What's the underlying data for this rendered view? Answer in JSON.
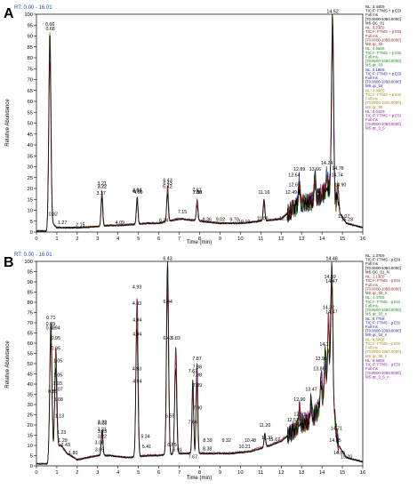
{
  "panels": [
    {
      "letter": "A",
      "rt_label": "RT: 0.00 - 16.01",
      "xlabel": "Time (min)",
      "ylabel": "Relative Abundance",
      "xticks": [
        "0",
        "1",
        "2",
        "3",
        "4",
        "5",
        "6",
        "7",
        "8",
        "9",
        "10",
        "11",
        "12",
        "13",
        "14",
        "15",
        "16"
      ],
      "yticks": [
        "0",
        "5",
        "10",
        "15",
        "20",
        "25",
        "30",
        "35",
        "40",
        "45",
        "50",
        "55",
        "60",
        "65",
        "70",
        "75",
        "80",
        "85",
        "90",
        "95",
        "100"
      ],
      "legend": [
        {
          "color": "#000000",
          "lines": [
            "NL: 3.44E9",
            "TIC F: FTMS + p ESI",
            "Full ms",
            "[70.0000-1050.0000]",
            "MS QC_01"
          ]
        },
        {
          "color": "#8b1a1a",
          "lines": [
            "NL: 3.23E9",
            "TIC F: FTMS + p ESI",
            "Full ms",
            "[70.0000-1050.0000]",
            "MS qc_02"
          ]
        },
        {
          "color": "#1a8a1a",
          "lines": [
            "NL: 3.55E9",
            "TIC F: FTMS + p ESI",
            "Full ms",
            "[70.0000-1050.0000]",
            "MS qc_03"
          ]
        },
        {
          "color": "#2020a0",
          "lines": [
            "NL: 3.18E9",
            "TIC F: FTMS + p ESI",
            "Full ms",
            "[70.0000-1050.0000]",
            "MS qc_04"
          ]
        },
        {
          "color": "#a08a10",
          "lines": [
            "NL: 3.39E9",
            "TIC F: FTMS + p ESI",
            "Full ms",
            "[70.0000-1050.0000]",
            "MS qc_05"
          ]
        },
        {
          "color": "#8a1a9a",
          "lines": [
            "NL: 3.01E9",
            "TIC F: FTMS + p ESI",
            "Full ms",
            "[70.0000-1050.0000]",
            "MS qc_0_6"
          ]
        }
      ],
      "peak_labels": [
        {
          "t": 0.66,
          "y": 94,
          "text": "0.66"
        },
        {
          "t": 0.68,
          "y": 92,
          "text": "0.68"
        },
        {
          "t": 0.82,
          "y": 7,
          "text": "0.82"
        },
        {
          "t": 1.27,
          "y": 3,
          "text": "1.27"
        },
        {
          "t": 2.15,
          "y": 2,
          "text": "2.15"
        },
        {
          "t": 3.21,
          "y": 21,
          "text": "3.21"
        },
        {
          "t": 3.22,
          "y": 19.5,
          "text": "3.22"
        },
        {
          "t": 3.22,
          "y": 19.5,
          "text": "3.22"
        },
        {
          "t": 3.17,
          "y": 16.5,
          "text": "3.17"
        },
        {
          "t": 4.09,
          "y": 3,
          "text": "4.09"
        },
        {
          "t": 4.93,
          "y": 17.5,
          "text": "4.93"
        },
        {
          "t": 4.94,
          "y": 18,
          "text": "4.94"
        },
        {
          "t": 4.99,
          "y": 17,
          "text": "4.99"
        },
        {
          "t": 6.24,
          "y": 4,
          "text": "6.24"
        },
        {
          "t": 6.42,
          "y": 19.5,
          "text": "6.42"
        },
        {
          "t": 6.43,
          "y": 22.5,
          "text": "6.43"
        },
        {
          "t": 6.43,
          "y": 21,
          "text": "6.43"
        },
        {
          "t": 7.15,
          "y": 8,
          "text": "7.15"
        },
        {
          "t": 7.88,
          "y": 17,
          "text": "7.88"
        },
        {
          "t": 7.87,
          "y": 18,
          "text": "7.87"
        },
        {
          "t": 7.9,
          "y": 17,
          "text": "7.90"
        },
        {
          "t": 8.36,
          "y": 4.5,
          "text": "8.36"
        },
        {
          "t": 9.02,
          "y": 4.5,
          "text": "9.02"
        },
        {
          "t": 9.7,
          "y": 4.5,
          "text": "9.70"
        },
        {
          "t": 10.19,
          "y": 3.5,
          "text": "10.19"
        },
        {
          "t": 11.08,
          "y": 5,
          "text": "11.08"
        },
        {
          "t": 11.16,
          "y": 17,
          "text": "11.16"
        },
        {
          "t": 12.19,
          "y": 5,
          "text": "12.19"
        },
        {
          "t": 12.49,
          "y": 17,
          "text": "12.49"
        },
        {
          "t": 12.89,
          "y": 27.5,
          "text": "12.89"
        },
        {
          "t": 12.64,
          "y": 25,
          "text": "12.64"
        },
        {
          "t": 12.65,
          "y": 20.5,
          "text": "12.65"
        },
        {
          "t": 13.66,
          "y": 27.5,
          "text": "13.66"
        },
        {
          "t": 14.24,
          "y": 30.5,
          "text": "14.24"
        },
        {
          "t": 14.52,
          "y": 100,
          "text": "14.52"
        },
        {
          "t": 14.78,
          "y": 28,
          "text": "14.78"
        },
        {
          "t": 14.74,
          "y": 25,
          "text": "14.74"
        },
        {
          "t": 14.9,
          "y": 20.5,
          "text": "14.90"
        },
        {
          "t": 15.07,
          "y": 6,
          "text": "15.07"
        },
        {
          "t": 15.23,
          "y": 4.5,
          "text": "15.23"
        }
      ]
    },
    {
      "letter": "B",
      "rt_label": "RT: 0.00 - 16.01",
      "xlabel": "Time (min)",
      "ylabel": "Relative Abundance",
      "xticks": [
        "0",
        "1",
        "2",
        "3",
        "4",
        "5",
        "6",
        "7",
        "8",
        "9",
        "10",
        "11",
        "12",
        "13",
        "14",
        "15",
        "16"
      ],
      "yticks": [
        "0",
        "5",
        "10",
        "15",
        "20",
        "25",
        "30",
        "35",
        "40",
        "45",
        "50",
        "55",
        "60",
        "65",
        "70",
        "75",
        "80",
        "85",
        "90",
        "95",
        "100"
      ],
      "legend": [
        {
          "color": "#000000",
          "lines": [
            "NL: 1.37E9",
            "TIC F: FTMS - p ESI",
            "Full ms",
            "[70.0000-1050.0000]",
            "MS QC_01_N"
          ]
        },
        {
          "color": "#8b1a1a",
          "lines": [
            "NL: 1.13E9",
            "TIC F: FTMS - p ESI",
            "Full ms",
            "[70.0000-1050.0000]",
            "MS qc_02_n"
          ]
        },
        {
          "color": "#1a8a1a",
          "lines": [
            "NL: 1.47E9",
            "TIC F: FTMS - p ESI",
            "Full ms",
            "[70.0000-1050.0000]",
            "MS qc_03_n"
          ]
        },
        {
          "color": "#2020a0",
          "lines": [
            "NL: 8.77E8",
            "TIC F: FTMS - p ESI",
            "Full ms",
            "[70.0000-1050.0000]",
            "MS qc_04_n"
          ]
        },
        {
          "color": "#a08a10",
          "lines": [
            "NL: 8.50E8",
            "TIC F: FTMS - p ESI",
            "Full ms",
            "[70.0000-1050.0000]",
            "MS qc_05_n"
          ]
        },
        {
          "color": "#8a1a9a",
          "lines": [
            "NL: 9.56E8",
            "TIC F: FTMS - p ESI",
            "Full ms",
            "[70.0000-1050.0000]",
            "MS qc_0_6_n"
          ]
        }
      ],
      "peak_labels": [
        {
          "t": 0.71,
          "y": 71,
          "text": "0.71"
        },
        {
          "t": 0.69,
          "y": 68,
          "text": "0.69"
        },
        {
          "t": 0.69,
          "y": 66,
          "text": "0.69"
        },
        {
          "t": 0.94,
          "y": 66,
          "text": "0.94"
        },
        {
          "t": 0.95,
          "y": 61,
          "text": "0.95"
        },
        {
          "t": 0.95,
          "y": 56,
          "text": "0.95"
        },
        {
          "t": 1.05,
          "y": 50,
          "text": "1.05"
        },
        {
          "t": 1.05,
          "y": 43,
          "text": "1.05"
        },
        {
          "t": 1.03,
          "y": 39,
          "text": "1.03"
        },
        {
          "t": 1.07,
          "y": 36,
          "text": "1.07"
        },
        {
          "t": 0.8,
          "y": 35,
          "text": "0.80"
        },
        {
          "t": 1.08,
          "y": 31,
          "text": "1.08"
        },
        {
          "t": 1.13,
          "y": 23,
          "text": "1.13"
        },
        {
          "t": 1.23,
          "y": 15,
          "text": "1.23"
        },
        {
          "t": 1.29,
          "y": 11,
          "text": "1.29"
        },
        {
          "t": 1.43,
          "y": 9,
          "text": "1.43"
        },
        {
          "t": 1.8,
          "y": 5,
          "text": "1.80"
        },
        {
          "t": 3.08,
          "y": 10,
          "text": "3.08"
        },
        {
          "t": 3.09,
          "y": 6.5,
          "text": "3.09"
        },
        {
          "t": 3.22,
          "y": 20,
          "text": "3.22"
        },
        {
          "t": 3.23,
          "y": 19.5,
          "text": "3.23"
        },
        {
          "t": 3.21,
          "y": 16.5,
          "text": "3.21"
        },
        {
          "t": 3.23,
          "y": 15.5,
          "text": "3.23"
        },
        {
          "t": 3.22,
          "y": 13,
          "text": "3.22"
        },
        {
          "t": 4.93,
          "y": 86,
          "text": "4.93"
        },
        {
          "t": 4.93,
          "y": 78,
          "text": "4.93"
        },
        {
          "t": 4.94,
          "y": 70,
          "text": "4.94"
        },
        {
          "t": 4.94,
          "y": 63,
          "text": "4.94"
        },
        {
          "t": 4.93,
          "y": 46,
          "text": "4.93"
        },
        {
          "t": 4.94,
          "y": 40,
          "text": "4.94"
        },
        {
          "t": 5.34,
          "y": 13,
          "text": "5.34"
        },
        {
          "t": 5.41,
          "y": 8,
          "text": "5.41"
        },
        {
          "t": 6.43,
          "y": 100,
          "text": "6.43"
        },
        {
          "t": 6.44,
          "y": 79,
          "text": "6.44"
        },
        {
          "t": 6.83,
          "y": 61,
          "text": "6.83"
        },
        {
          "t": 6.43,
          "y": 61,
          "text": "6.43"
        },
        {
          "t": 6.55,
          "y": 23,
          "text": "6.55"
        },
        {
          "t": 6.65,
          "y": 9,
          "text": "6.65"
        },
        {
          "t": 6.91,
          "y": 6.5,
          "text": "6.91"
        },
        {
          "t": 7.67,
          "y": 45,
          "text": "7.67"
        },
        {
          "t": 7.66,
          "y": 20,
          "text": "7.66"
        },
        {
          "t": 7.67,
          "y": 3,
          "text": "7.67"
        },
        {
          "t": 7.87,
          "y": 51,
          "text": "7.87"
        },
        {
          "t": 7.88,
          "y": 47,
          "text": "7.88"
        },
        {
          "t": 7.88,
          "y": 43,
          "text": "7.88"
        },
        {
          "t": 7.89,
          "y": 38,
          "text": "7.89"
        },
        {
          "t": 7.9,
          "y": 27,
          "text": "7.90"
        },
        {
          "t": 8.39,
          "y": 11,
          "text": "8.39"
        },
        {
          "t": 8.38,
          "y": 7,
          "text": "8.38"
        },
        {
          "t": 9.32,
          "y": 11,
          "text": "9.32"
        },
        {
          "t": 10.48,
          "y": 11,
          "text": "10.48"
        },
        {
          "t": 10.21,
          "y": 8,
          "text": "10.21"
        },
        {
          "t": 11.2,
          "y": 18.5,
          "text": "11.20"
        },
        {
          "t": 11.31,
          "y": 12.5,
          "text": "11.31"
        },
        {
          "t": 11.67,
          "y": 11.5,
          "text": "11.67"
        },
        {
          "t": 12.57,
          "y": 21,
          "text": "12.57"
        },
        {
          "t": 12.9,
          "y": 31,
          "text": "12.90"
        },
        {
          "t": 12.91,
          "y": 24,
          "text": "12.91"
        },
        {
          "t": 13.47,
          "y": 36,
          "text": "13.47"
        },
        {
          "t": 13.96,
          "y": 51,
          "text": "13.96"
        },
        {
          "t": 13.86,
          "y": 46,
          "text": "13.86"
        },
        {
          "t": 14.17,
          "y": 58,
          "text": "14.17"
        },
        {
          "t": 14.32,
          "y": 76,
          "text": "14.32"
        },
        {
          "t": 14.39,
          "y": 91,
          "text": "14.39"
        },
        {
          "t": 14.47,
          "y": 89,
          "text": "14.47"
        },
        {
          "t": 14.48,
          "y": 100,
          "text": "14.48"
        },
        {
          "t": 14.47,
          "y": 74,
          "text": "14.47"
        },
        {
          "t": 14.71,
          "y": 17,
          "text": "14.71"
        },
        {
          "t": 14.65,
          "y": 11,
          "text": "14.65"
        },
        {
          "t": 14.85,
          "y": 5,
          "text": "14.85"
        },
        {
          "t": 15.2,
          "y": 3,
          "text": "15.20"
        }
      ]
    }
  ],
  "chart_data": [
    {
      "type": "line",
      "panel": "A",
      "xlabel": "Time (min)",
      "ylabel": "Relative Abundance",
      "xlim": [
        0,
        16
      ],
      "ylim": [
        0,
        100
      ],
      "series_names": [
        "MS QC_01",
        "MS qc_02",
        "MS qc_03",
        "MS qc_04",
        "MS qc_05",
        "MS qc_0_6"
      ],
      "series_colors": [
        "#000000",
        "#8b1a1a",
        "#1a8a1a",
        "#2020a0",
        "#a08a10",
        "#8a1a9a"
      ],
      "peaks": [
        {
          "t": 0.66,
          "y": 92
        },
        {
          "t": 3.21,
          "y": 19
        },
        {
          "t": 4.94,
          "y": 16
        },
        {
          "t": 6.43,
          "y": 21
        },
        {
          "t": 7.15,
          "y": 6
        },
        {
          "t": 7.88,
          "y": 15
        },
        {
          "t": 11.16,
          "y": 15
        },
        {
          "t": 12.89,
          "y": 24
        },
        {
          "t": 13.66,
          "y": 25
        },
        {
          "t": 14.24,
          "y": 27
        },
        {
          "t": 14.52,
          "y": 100
        },
        {
          "t": 14.78,
          "y": 22
        }
      ],
      "baseline": [
        {
          "t": 0,
          "y": 0.5
        },
        {
          "t": 0.5,
          "y": 0.5
        },
        {
          "t": 0.62,
          "y": 5
        },
        {
          "t": 0.8,
          "y": 4
        },
        {
          "t": 1.0,
          "y": 2
        },
        {
          "t": 2.0,
          "y": 2
        },
        {
          "t": 3.0,
          "y": 2.5
        },
        {
          "t": 3.5,
          "y": 3
        },
        {
          "t": 4.0,
          "y": 3
        },
        {
          "t": 5.5,
          "y": 4
        },
        {
          "t": 6.0,
          "y": 4
        },
        {
          "t": 7.0,
          "y": 6
        },
        {
          "t": 8.0,
          "y": 5
        },
        {
          "t": 9.0,
          "y": 4
        },
        {
          "t": 10.0,
          "y": 4
        },
        {
          "t": 11.0,
          "y": 5
        },
        {
          "t": 12.0,
          "y": 6
        },
        {
          "t": 12.5,
          "y": 10
        },
        {
          "t": 13.0,
          "y": 13
        },
        {
          "t": 13.5,
          "y": 14
        },
        {
          "t": 14.0,
          "y": 17
        },
        {
          "t": 14.4,
          "y": 20
        },
        {
          "t": 14.9,
          "y": 8
        },
        {
          "t": 15.2,
          "y": 4
        },
        {
          "t": 16.0,
          "y": 2
        }
      ]
    },
    {
      "type": "line",
      "panel": "B",
      "xlabel": "Time (min)",
      "ylabel": "Relative Abundance",
      "xlim": [
        0,
        16
      ],
      "ylim": [
        0,
        100
      ],
      "series_names": [
        "MS QC_01_N",
        "MS qc_02_n",
        "MS qc_03_n",
        "MS qc_04_n",
        "MS qc_05_n",
        "MS qc_0_6_n"
      ],
      "series_colors": [
        "#000000",
        "#8b1a1a",
        "#1a8a1a",
        "#2020a0",
        "#a08a10",
        "#8a1a9a"
      ],
      "peaks": [
        {
          "t": 0.71,
          "y": 70
        },
        {
          "t": 0.95,
          "y": 58
        },
        {
          "t": 3.22,
          "y": 18
        },
        {
          "t": 4.93,
          "y": 82
        },
        {
          "t": 6.43,
          "y": 100
        },
        {
          "t": 6.83,
          "y": 58
        },
        {
          "t": 7.67,
          "y": 42
        },
        {
          "t": 7.87,
          "y": 50
        },
        {
          "t": 11.2,
          "y": 16
        },
        {
          "t": 12.9,
          "y": 28
        },
        {
          "t": 13.47,
          "y": 33
        },
        {
          "t": 13.96,
          "y": 48
        },
        {
          "t": 14.17,
          "y": 55
        },
        {
          "t": 14.32,
          "y": 72
        },
        {
          "t": 14.48,
          "y": 100
        },
        {
          "t": 14.71,
          "y": 15
        }
      ],
      "baseline": [
        {
          "t": 0,
          "y": 1
        },
        {
          "t": 0.55,
          "y": 1
        },
        {
          "t": 0.62,
          "y": 8
        },
        {
          "t": 1.2,
          "y": 10
        },
        {
          "t": 1.5,
          "y": 6
        },
        {
          "t": 2.0,
          "y": 3
        },
        {
          "t": 3.0,
          "y": 5
        },
        {
          "t": 3.5,
          "y": 5
        },
        {
          "t": 4.5,
          "y": 4
        },
        {
          "t": 5.5,
          "y": 5
        },
        {
          "t": 6.0,
          "y": 5
        },
        {
          "t": 7.0,
          "y": 6
        },
        {
          "t": 8.5,
          "y": 6
        },
        {
          "t": 9.5,
          "y": 6
        },
        {
          "t": 10.5,
          "y": 7
        },
        {
          "t": 11.5,
          "y": 10
        },
        {
          "t": 12.0,
          "y": 12
        },
        {
          "t": 12.5,
          "y": 16
        },
        {
          "t": 13.0,
          "y": 20
        },
        {
          "t": 13.5,
          "y": 22
        },
        {
          "t": 14.0,
          "y": 30
        },
        {
          "t": 14.4,
          "y": 40
        },
        {
          "t": 14.8,
          "y": 10
        },
        {
          "t": 15.2,
          "y": 4
        },
        {
          "t": 16.0,
          "y": 2
        }
      ]
    }
  ]
}
